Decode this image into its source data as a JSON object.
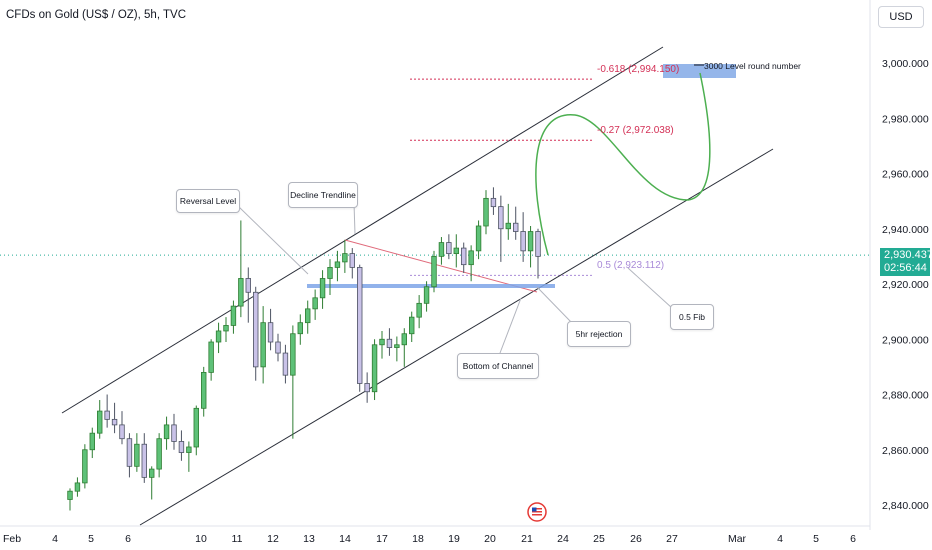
{
  "header": {
    "title": "CFDs on Gold (US$ / OZ), 5h, TVC",
    "currency_button": "USD"
  },
  "price_tag": {
    "price": "2,930.437",
    "countdown": "02:56:44",
    "color": "#22ab94"
  },
  "colors": {
    "up": "#26a69a",
    "up_fill": "#5ec178",
    "down": "#4d5363",
    "channel": "#2a2e39",
    "fib": "#d32f55",
    "fib_half": "#a98bd8",
    "support": "#7ea5e8",
    "projection": "#4caf50",
    "decline": "#e06a7b",
    "zone": "#8aaee8"
  },
  "annotations": {
    "reversal_level": "Reversal Level",
    "decline_trendline": "Decline Trendline",
    "bottom_of_channel": "Bottom of Channel",
    "rejection": "5hr rejection",
    "fib_label": "0.5 Fib",
    "round_number": "3000 Level round number",
    "fib_618": "-0.618 (2,994.150)",
    "fib_27": "-0.27 (2,972.038)",
    "fib_5": "0.5 (2,923.112)"
  },
  "chart_data": {
    "type": "candlestick",
    "title": "CFDs on Gold (US$ / OZ), 5h, TVC",
    "x_ticks": [
      "Feb",
      "4",
      "5",
      "6",
      "10",
      "11",
      "12",
      "13",
      "14",
      "17",
      "18",
      "19",
      "20",
      "21",
      "24",
      "25",
      "26",
      "27",
      "Mar",
      "4",
      "5",
      "6"
    ],
    "y_ticks": [
      "2,840.000",
      "2,860.000",
      "2,880.000",
      "2,900.000",
      "2,920.000",
      "2,940.000",
      "2,960.000",
      "2,980.000",
      "3,000.000"
    ],
    "ylim": [
      2833,
      3010
    ],
    "last_price": 2930.437,
    "fib_levels": [
      {
        "ratio": "-0.618",
        "price": 2994.15
      },
      {
        "ratio": "-0.27",
        "price": 2972.038
      },
      {
        "ratio": "0.5",
        "price": 2923.112
      }
    ],
    "candles": [
      [
        2842,
        2846,
        2838,
        2845
      ],
      [
        2845,
        2850,
        2843,
        2848
      ],
      [
        2848,
        2862,
        2846,
        2860
      ],
      [
        2860,
        2868,
        2857,
        2866
      ],
      [
        2866,
        2878,
        2864,
        2874
      ],
      [
        2874,
        2880,
        2868,
        2871
      ],
      [
        2871,
        2877,
        2866,
        2869
      ],
      [
        2869,
        2874,
        2862,
        2864
      ],
      [
        2864,
        2866,
        2850,
        2854
      ],
      [
        2854,
        2866,
        2852,
        2862
      ],
      [
        2862,
        2866,
        2848,
        2850
      ],
      [
        2850,
        2854,
        2842,
        2853
      ],
      [
        2853,
        2866,
        2850,
        2864
      ],
      [
        2864,
        2872,
        2860,
        2869
      ],
      [
        2869,
        2873,
        2860,
        2863
      ],
      [
        2863,
        2867,
        2856,
        2859
      ],
      [
        2859,
        2863,
        2852,
        2861
      ],
      [
        2861,
        2876,
        2858,
        2875
      ],
      [
        2875,
        2890,
        2872,
        2888
      ],
      [
        2888,
        2900,
        2885,
        2899
      ],
      [
        2899,
        2906,
        2895,
        2903
      ],
      [
        2903,
        2908,
        2899,
        2905
      ],
      [
        2905,
        2914,
        2902,
        2912
      ],
      [
        2912,
        2943,
        2908,
        2922
      ],
      [
        2922,
        2926,
        2906,
        2917
      ],
      [
        2917,
        2919,
        2885,
        2890
      ],
      [
        2890,
        2912,
        2884,
        2906
      ],
      [
        2906,
        2911,
        2896,
        2899
      ],
      [
        2899,
        2902,
        2892,
        2895
      ],
      [
        2895,
        2898,
        2884,
        2887
      ],
      [
        2887,
        2905,
        2864,
        2902
      ],
      [
        2902,
        2909,
        2898,
        2906
      ],
      [
        2906,
        2914,
        2902,
        2911
      ],
      [
        2911,
        2918,
        2907,
        2915
      ],
      [
        2915,
        2925,
        2911,
        2922
      ],
      [
        2922,
        2929,
        2916,
        2926
      ],
      [
        2926,
        2932,
        2921,
        2928
      ],
      [
        2928,
        2936,
        2924,
        2931
      ],
      [
        2931,
        2933,
        2922,
        2926
      ],
      [
        2926,
        2927,
        2881,
        2884
      ],
      [
        2884,
        2888,
        2877,
        2881
      ],
      [
        2881,
        2900,
        2878,
        2898
      ],
      [
        2898,
        2903,
        2893,
        2900
      ],
      [
        2900,
        2904,
        2894,
        2897
      ],
      [
        2897,
        2901,
        2892,
        2898
      ],
      [
        2898,
        2904,
        2890,
        2902
      ],
      [
        2902,
        2910,
        2899,
        2908
      ],
      [
        2908,
        2916,
        2904,
        2913
      ],
      [
        2913,
        2921,
        2910,
        2919
      ],
      [
        2919,
        2932,
        2917,
        2930
      ],
      [
        2930,
        2937,
        2927,
        2935
      ],
      [
        2935,
        2938,
        2929,
        2931
      ],
      [
        2931,
        2938,
        2926,
        2933
      ],
      [
        2933,
        2935,
        2924,
        2927
      ],
      [
        2927,
        2934,
        2921,
        2932
      ],
      [
        2932,
        2943,
        2929,
        2941
      ],
      [
        2941,
        2954,
        2938,
        2951
      ],
      [
        2951,
        2955,
        2945,
        2948
      ],
      [
        2948,
        2952,
        2928,
        2940
      ],
      [
        2940,
        2949,
        2936,
        2942
      ],
      [
        2942,
        2948,
        2936,
        2939
      ],
      [
        2939,
        2946,
        2928,
        2932
      ],
      [
        2932,
        2941,
        2926,
        2939
      ],
      [
        2939,
        2940,
        2922,
        2930
      ]
    ]
  }
}
